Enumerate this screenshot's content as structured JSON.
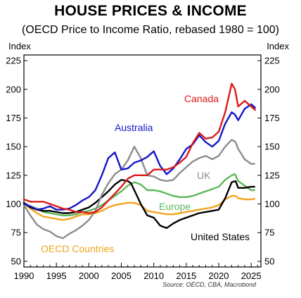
{
  "chart_data": {
    "type": "line",
    "title": "HOUSE PRICES & INCOME",
    "subtitle": "(OECD Price to Income Ratio, rebased 1980 = 100)",
    "ylabel_left": "Index",
    "ylabel_right": "Index",
    "source": "Source: OECD, CBA, Macrobond",
    "xlim": [
      1990,
      2026.5
    ],
    "ylim": [
      45,
      230
    ],
    "x_ticks": [
      1990,
      1995,
      2000,
      2005,
      2010,
      2015,
      2020,
      2025
    ],
    "y_ticks": [
      50,
      75,
      100,
      125,
      150,
      175,
      200,
      225
    ],
    "grid": false,
    "series": [
      {
        "name": "OECD Countries",
        "color": "#f2a31b",
        "points": [
          [
            1990,
            100
          ],
          [
            1991,
            96
          ],
          [
            1992,
            92
          ],
          [
            1993,
            89
          ],
          [
            1994,
            88
          ],
          [
            1995,
            87
          ],
          [
            1996,
            86
          ],
          [
            1997,
            87
          ],
          [
            1998,
            89
          ],
          [
            1999,
            91
          ],
          [
            2000,
            91
          ],
          [
            2001,
            92
          ],
          [
            2002,
            94
          ],
          [
            2003,
            97
          ],
          [
            2004,
            99
          ],
          [
            2005,
            100
          ],
          [
            2006,
            101
          ],
          [
            2007,
            101
          ],
          [
            2008,
            99
          ],
          [
            2009,
            94
          ],
          [
            2010,
            93
          ],
          [
            2011,
            92
          ],
          [
            2012,
            91
          ],
          [
            2013,
            91
          ],
          [
            2014,
            92
          ],
          [
            2015,
            93
          ],
          [
            2016,
            94
          ],
          [
            2017,
            95
          ],
          [
            2018,
            96
          ],
          [
            2019,
            97
          ],
          [
            2020,
            99
          ],
          [
            2021,
            104
          ],
          [
            2022,
            107
          ],
          [
            2022.6,
            107
          ],
          [
            2023,
            105
          ],
          [
            2024,
            104
          ],
          [
            2025,
            104
          ],
          [
            2025.5,
            104.5
          ]
        ]
      },
      {
        "name": "Europe",
        "color": "#5bb85b",
        "points": [
          [
            1990,
            100
          ],
          [
            1991,
            98
          ],
          [
            1992,
            96
          ],
          [
            1993,
            93
          ],
          [
            1994,
            92
          ],
          [
            1995,
            91
          ],
          [
            1996,
            90
          ],
          [
            1997,
            90
          ],
          [
            1998,
            91
          ],
          [
            1999,
            93
          ],
          [
            2000,
            94
          ],
          [
            2001,
            96
          ],
          [
            2002,
            99
          ],
          [
            2003,
            103
          ],
          [
            2004,
            107
          ],
          [
            2005,
            111
          ],
          [
            2006,
            116
          ],
          [
            2007,
            119
          ],
          [
            2008,
            117
          ],
          [
            2009,
            112
          ],
          [
            2010,
            112
          ],
          [
            2011,
            111
          ],
          [
            2012,
            109
          ],
          [
            2013,
            107
          ],
          [
            2014,
            106
          ],
          [
            2015,
            106
          ],
          [
            2016,
            107
          ],
          [
            2017,
            109
          ],
          [
            2018,
            111
          ],
          [
            2019,
            113
          ],
          [
            2020,
            115
          ],
          [
            2021,
            121
          ],
          [
            2022,
            125
          ],
          [
            2022.5,
            126
          ],
          [
            2023,
            120
          ],
          [
            2024,
            116
          ],
          [
            2025,
            112
          ],
          [
            2025.5,
            112
          ]
        ]
      },
      {
        "name": "United States",
        "color": "#000000",
        "points": [
          [
            1990,
            101
          ],
          [
            1991,
            97
          ],
          [
            1992,
            95
          ],
          [
            1993,
            94
          ],
          [
            1994,
            94
          ],
          [
            1995,
            93
          ],
          [
            1996,
            92
          ],
          [
            1997,
            92
          ],
          [
            1998,
            93
          ],
          [
            1999,
            95
          ],
          [
            2000,
            97
          ],
          [
            2001,
            101
          ],
          [
            2002,
            106
          ],
          [
            2003,
            111
          ],
          [
            2004,
            117
          ],
          [
            2005,
            121
          ],
          [
            2006,
            120
          ],
          [
            2006.5,
            118
          ],
          [
            2007,
            112
          ],
          [
            2008,
            100
          ],
          [
            2009,
            90
          ],
          [
            2010,
            88
          ],
          [
            2011,
            81
          ],
          [
            2012,
            79
          ],
          [
            2013,
            83
          ],
          [
            2014,
            86
          ],
          [
            2015,
            88
          ],
          [
            2016,
            90
          ],
          [
            2017,
            92
          ],
          [
            2018,
            93
          ],
          [
            2019,
            94
          ],
          [
            2020,
            95
          ],
          [
            2021,
            105
          ],
          [
            2022,
            119
          ],
          [
            2022.6,
            120
          ],
          [
            2023,
            114
          ],
          [
            2024,
            114
          ],
          [
            2025,
            115
          ],
          [
            2025.5,
            115
          ]
        ]
      },
      {
        "name": "UK",
        "color": "#8c8c8c",
        "points": [
          [
            1990,
            99
          ],
          [
            1991,
            90
          ],
          [
            1992,
            82
          ],
          [
            1993,
            78
          ],
          [
            1994,
            76
          ],
          [
            1995,
            72
          ],
          [
            1996,
            70
          ],
          [
            1997,
            74
          ],
          [
            1998,
            77
          ],
          [
            1999,
            81
          ],
          [
            2000,
            86
          ],
          [
            2001,
            94
          ],
          [
            2002,
            108
          ],
          [
            2003,
            118
          ],
          [
            2004,
            126
          ],
          [
            2005,
            130
          ],
          [
            2006,
            138
          ],
          [
            2007,
            150
          ],
          [
            2008,
            140
          ],
          [
            2009,
            125
          ],
          [
            2010,
            124
          ],
          [
            2011,
            121
          ],
          [
            2012,
            120
          ],
          [
            2013,
            121
          ],
          [
            2014,
            127
          ],
          [
            2015,
            132
          ],
          [
            2016,
            137
          ],
          [
            2017,
            140
          ],
          [
            2018,
            142
          ],
          [
            2019,
            139
          ],
          [
            2020,
            142
          ],
          [
            2021,
            150
          ],
          [
            2022,
            156
          ],
          [
            2022.6,
            154
          ],
          [
            2023,
            148
          ],
          [
            2024,
            139
          ],
          [
            2025,
            135
          ],
          [
            2025.5,
            135
          ]
        ]
      },
      {
        "name": "Australia",
        "color": "#1515c8",
        "points": [
          [
            1990,
            100
          ],
          [
            1991,
            98
          ],
          [
            1992,
            95
          ],
          [
            1993,
            96
          ],
          [
            1994,
            98
          ],
          [
            1995,
            95
          ],
          [
            1996,
            95
          ],
          [
            1997,
            96
          ],
          [
            1998,
            99
          ],
          [
            1999,
            103
          ],
          [
            2000,
            106
          ],
          [
            2001,
            112
          ],
          [
            2002,
            125
          ],
          [
            2003,
            140
          ],
          [
            2004,
            145
          ],
          [
            2005,
            130
          ],
          [
            2006,
            131
          ],
          [
            2007,
            136
          ],
          [
            2008,
            138
          ],
          [
            2009,
            141
          ],
          [
            2010,
            146
          ],
          [
            2011,
            133
          ],
          [
            2012,
            126
          ],
          [
            2013,
            131
          ],
          [
            2014,
            139
          ],
          [
            2015,
            148
          ],
          [
            2016,
            152
          ],
          [
            2017,
            160
          ],
          [
            2018,
            154
          ],
          [
            2019,
            150
          ],
          [
            2020,
            155
          ],
          [
            2021,
            170
          ],
          [
            2022,
            180
          ],
          [
            2022.5,
            178
          ],
          [
            2023,
            173
          ],
          [
            2024,
            183
          ],
          [
            2025,
            187
          ],
          [
            2025.6,
            184
          ]
        ]
      },
      {
        "name": "Canada",
        "color": "#dd1a1a",
        "points": [
          [
            1990,
            104
          ],
          [
            1991,
            102
          ],
          [
            1992,
            102
          ],
          [
            1993,
            102
          ],
          [
            1994,
            100
          ],
          [
            1995,
            98
          ],
          [
            1996,
            96
          ],
          [
            1997,
            95
          ],
          [
            1998,
            93
          ],
          [
            1999,
            93
          ],
          [
            2000,
            92
          ],
          [
            2001,
            93
          ],
          [
            2002,
            97
          ],
          [
            2003,
            103
          ],
          [
            2004,
            109
          ],
          [
            2005,
            115
          ],
          [
            2006,
            122
          ],
          [
            2007,
            125
          ],
          [
            2008,
            125
          ],
          [
            2009,
            125
          ],
          [
            2010,
            130
          ],
          [
            2011,
            130
          ],
          [
            2012,
            130
          ],
          [
            2013,
            132
          ],
          [
            2014,
            136
          ],
          [
            2015,
            141
          ],
          [
            2016,
            153
          ],
          [
            2017,
            162
          ],
          [
            2018,
            157
          ],
          [
            2019,
            158
          ],
          [
            2020,
            163
          ],
          [
            2021,
            180
          ],
          [
            2022,
            205
          ],
          [
            2022.5,
            200
          ],
          [
            2023,
            185
          ],
          [
            2024,
            190
          ],
          [
            2025,
            185
          ],
          [
            2025.6,
            182
          ]
        ]
      }
    ]
  }
}
